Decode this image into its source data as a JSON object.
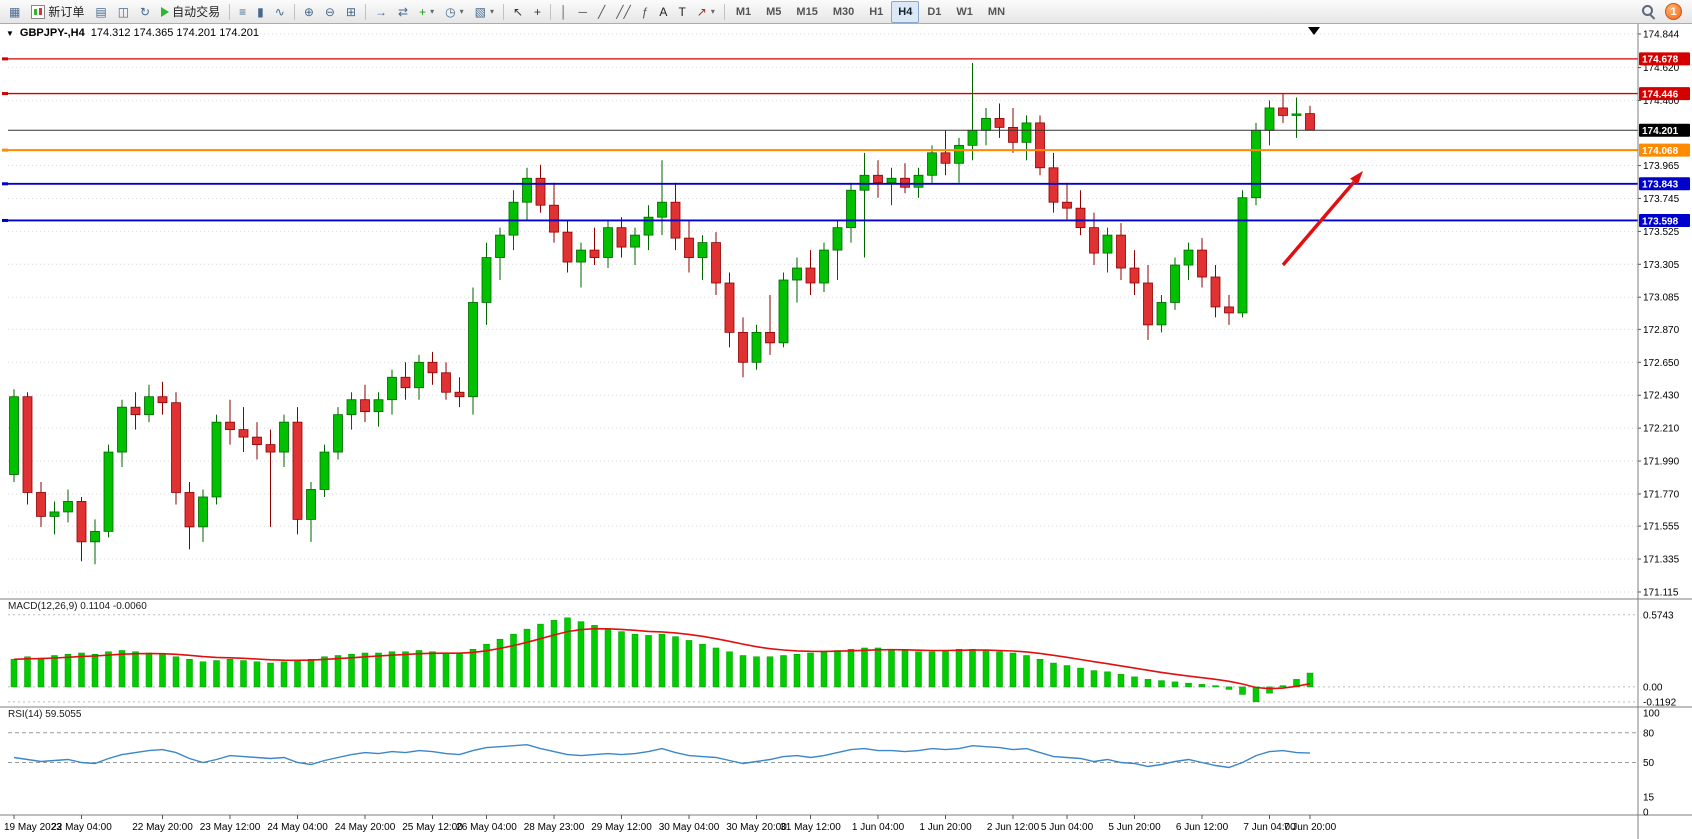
{
  "toolbar": {
    "buttons": [
      {
        "name": "new-chart-button",
        "glyph": "▦"
      },
      {
        "name": "new-order-button",
        "label": "新订单",
        "icon": "order-icon"
      },
      {
        "name": "chart-profiles-button",
        "glyph": "▤"
      },
      {
        "name": "market-watch-button",
        "glyph": "◫"
      },
      {
        "name": "refresh-button",
        "glyph": "↻"
      },
      {
        "name": "auto-trading-button",
        "label": "自动交易",
        "icon": "ea-icon"
      },
      {
        "sep": true
      },
      {
        "name": "bar-chart-button",
        "glyph": "≡"
      },
      {
        "name": "candlestick-chart-button",
        "glyph": "▮"
      },
      {
        "name": "line-chart-button",
        "glyph": "∿"
      },
      {
        "sep": true
      },
      {
        "name": "zoom-in-button",
        "glyph": "⊕"
      },
      {
        "name": "zoom-out-button",
        "glyph": "⊖"
      },
      {
        "name": "tile-windows-button",
        "glyph": "⊞"
      },
      {
        "sep": true
      },
      {
        "name": "auto-scroll-button",
        "glyph": "→"
      },
      {
        "name": "chart-shift-button",
        "glyph": "⇄"
      },
      {
        "name": "indicators-button",
        "glyph": "+",
        "color": "#1a9a1a",
        "caret": true
      },
      {
        "name": "periods-button",
        "glyph": "◷",
        "caret": true
      },
      {
        "name": "templates-button",
        "glyph": "▧",
        "caret": true
      },
      {
        "sep": true
      },
      {
        "name": "cursor-button",
        "glyph": "↖",
        "color": "#333333"
      },
      {
        "name": "crosshair-button",
        "glyph": "+",
        "color": "#333333"
      },
      {
        "sep": true
      },
      {
        "name": "vertical-line-button",
        "glyph": "│",
        "color": "#555555"
      },
      {
        "name": "horizontal-line-button",
        "glyph": "─",
        "color": "#555555"
      },
      {
        "name": "trendline-button",
        "glyph": "╱",
        "color": "#555555"
      },
      {
        "name": "equidistant-channel-button",
        "glyph": "╱╱",
        "color": "#555555"
      },
      {
        "name": "fibonacci-button",
        "glyph": "ƒ",
        "color": "#555555"
      },
      {
        "name": "text-button",
        "glyph": "A",
        "color": "#222222"
      },
      {
        "name": "text-label-button",
        "glyph": "T",
        "color": "#222222"
      },
      {
        "name": "arrows-button",
        "glyph": "↗",
        "color": "#a03030",
        "caret": true
      },
      {
        "sep": true
      }
    ],
    "timeframes": [
      "M1",
      "M5",
      "M15",
      "M30",
      "H1",
      "H4",
      "D1",
      "W1",
      "MN"
    ],
    "active_timeframe": "H4",
    "notification_count": "1"
  },
  "chart": {
    "title_symbol": "GBPJPY-,H4",
    "title_ohlc": "174.312 174.365 174.201 174.201",
    "current_price": "174.201",
    "current_price_color": "#000000",
    "price_axis": [
      "174.844",
      "174.620",
      "174.400",
      "173.965",
      "173.745",
      "173.525",
      "173.305",
      "173.085",
      "172.870",
      "172.650",
      "172.430",
      "172.210",
      "171.990",
      "171.770",
      "171.555",
      "171.335",
      "171.115"
    ],
    "levels": [
      {
        "value": "174.678",
        "color": "#d40000",
        "type": "resistance"
      },
      {
        "value": "174.446",
        "color": "#d40000",
        "type": "resistance"
      },
      {
        "value": "174.068",
        "color": "#ff8a00",
        "type": "pivot"
      },
      {
        "value": "173.843",
        "color": "#0000cc",
        "type": "support"
      },
      {
        "value": "173.598",
        "color": "#0000cc",
        "type": "support"
      }
    ],
    "annotation": {
      "type": "arrow-up-right",
      "color": "#e01010"
    }
  },
  "macd": {
    "label": "MACD(12,26,9) 0.1104 -0.0060",
    "scale": [
      "0.5743",
      "0.00",
      "-0.1192"
    ]
  },
  "rsi": {
    "label": "RSI(14) 59.5055",
    "scale": [
      [
        "100",
        100
      ],
      [
        "80",
        80
      ],
      [
        "50",
        50
      ],
      [
        "15",
        15
      ],
      [
        "0",
        0
      ]
    ],
    "dashed_levels": [
      80,
      50
    ]
  },
  "time_axis": {
    "ticks": [
      [
        "19 May 2023",
        0
      ],
      [
        "22 May 04:00",
        5
      ],
      [
        "22 May 20:00",
        11
      ],
      [
        "23 May 12:00",
        16
      ],
      [
        "24 May 04:00",
        21
      ],
      [
        "24 May 20:00",
        26
      ],
      [
        "25 May 12:00",
        31
      ],
      [
        "26 May 04:00",
        35
      ],
      [
        "28 May 23:00",
        40
      ],
      [
        "29 May 12:00",
        45
      ],
      [
        "30 May 04:00",
        50
      ],
      [
        "30 May 20:00",
        55
      ],
      [
        "31 May 12:00",
        59
      ],
      [
        "1 Jun 04:00",
        64
      ],
      [
        "1 Jun 20:00",
        69
      ],
      [
        "2 Jun 12:00",
        74
      ],
      [
        "5 Jun 04:00",
        78
      ],
      [
        "5 Jun 20:00",
        83
      ],
      [
        "6 Jun 12:00",
        88
      ],
      [
        "7 Jun 04:00",
        93
      ],
      [
        "7 Jun 20:00",
        96
      ]
    ]
  },
  "chart_data": {
    "type": "candlestick",
    "symbol": "GBPJPY",
    "period": "H4",
    "ylim": [
      171.068,
      174.911
    ],
    "up_color": "#00c000",
    "down_color": "#e03232",
    "candles": [
      [
        171.9,
        172.47,
        171.85,
        172.42
      ],
      [
        172.42,
        172.45,
        171.7,
        171.78
      ],
      [
        171.78,
        171.85,
        171.55,
        171.62
      ],
      [
        171.62,
        171.72,
        171.5,
        171.65
      ],
      [
        171.65,
        171.8,
        171.58,
        171.72
      ],
      [
        171.72,
        171.75,
        171.32,
        171.45
      ],
      [
        171.45,
        171.6,
        171.3,
        171.52
      ],
      [
        171.52,
        172.1,
        171.48,
        172.05
      ],
      [
        172.05,
        172.4,
        171.95,
        172.35
      ],
      [
        172.35,
        172.45,
        172.2,
        172.3
      ],
      [
        172.3,
        172.5,
        172.25,
        172.42
      ],
      [
        172.42,
        172.52,
        172.3,
        172.38
      ],
      [
        172.38,
        172.45,
        171.7,
        171.78
      ],
      [
        171.78,
        171.85,
        171.4,
        171.55
      ],
      [
        171.55,
        171.8,
        171.45,
        171.75
      ],
      [
        171.75,
        172.3,
        171.7,
        172.25
      ],
      [
        172.25,
        172.4,
        172.1,
        172.2
      ],
      [
        172.2,
        172.35,
        172.05,
        172.15
      ],
      [
        172.15,
        172.25,
        172.0,
        172.1
      ],
      [
        172.1,
        172.2,
        171.55,
        172.05
      ],
      [
        172.05,
        172.3,
        171.95,
        172.25
      ],
      [
        172.25,
        172.35,
        171.5,
        171.6
      ],
      [
        171.6,
        171.85,
        171.45,
        171.8
      ],
      [
        171.8,
        172.1,
        171.75,
        172.05
      ],
      [
        172.05,
        172.35,
        172.0,
        172.3
      ],
      [
        172.3,
        172.45,
        172.2,
        172.4
      ],
      [
        172.4,
        172.5,
        172.25,
        172.32
      ],
      [
        172.32,
        172.45,
        172.22,
        172.4
      ],
      [
        172.4,
        172.6,
        172.3,
        172.55
      ],
      [
        172.55,
        172.65,
        172.4,
        172.48
      ],
      [
        172.48,
        172.7,
        172.4,
        172.65
      ],
      [
        172.65,
        172.72,
        172.5,
        172.58
      ],
      [
        172.58,
        172.65,
        172.4,
        172.45
      ],
      [
        172.45,
        172.55,
        172.35,
        172.42
      ],
      [
        172.42,
        173.15,
        172.3,
        173.05
      ],
      [
        173.05,
        173.45,
        172.9,
        173.35
      ],
      [
        173.35,
        173.55,
        173.2,
        173.5
      ],
      [
        173.5,
        173.8,
        173.4,
        173.72
      ],
      [
        173.72,
        173.95,
        173.6,
        173.88
      ],
      [
        173.88,
        173.97,
        173.65,
        173.7
      ],
      [
        173.7,
        173.85,
        173.45,
        173.52
      ],
      [
        173.52,
        173.6,
        173.25,
        173.32
      ],
      [
        173.32,
        173.45,
        173.15,
        173.4
      ],
      [
        173.4,
        173.55,
        173.3,
        173.35
      ],
      [
        173.35,
        173.6,
        173.28,
        173.55
      ],
      [
        173.55,
        173.62,
        173.35,
        173.42
      ],
      [
        173.42,
        173.55,
        173.3,
        173.5
      ],
      [
        173.5,
        173.7,
        173.4,
        173.62
      ],
      [
        173.62,
        174.0,
        173.5,
        173.72
      ],
      [
        173.72,
        173.85,
        173.4,
        173.48
      ],
      [
        173.48,
        173.6,
        173.25,
        173.35
      ],
      [
        173.35,
        173.5,
        173.2,
        173.45
      ],
      [
        173.45,
        173.52,
        173.1,
        173.18
      ],
      [
        173.18,
        173.25,
        172.75,
        172.85
      ],
      [
        172.85,
        172.95,
        172.55,
        172.65
      ],
      [
        172.65,
        172.9,
        172.6,
        172.85
      ],
      [
        172.85,
        173.1,
        172.7,
        172.78
      ],
      [
        172.78,
        173.25,
        172.75,
        173.2
      ],
      [
        173.2,
        173.35,
        173.05,
        173.28
      ],
      [
        173.28,
        173.4,
        173.1,
        173.18
      ],
      [
        173.18,
        173.45,
        173.12,
        173.4
      ],
      [
        173.4,
        173.6,
        173.2,
        173.55
      ],
      [
        173.55,
        173.85,
        173.45,
        173.8
      ],
      [
        173.8,
        174.05,
        173.35,
        173.9
      ],
      [
        173.9,
        174.0,
        173.75,
        173.85
      ],
      [
        173.85,
        173.95,
        173.7,
        173.88
      ],
      [
        173.88,
        173.98,
        173.78,
        173.82
      ],
      [
        173.82,
        173.95,
        173.75,
        173.9
      ],
      [
        173.9,
        174.1,
        173.85,
        174.05
      ],
      [
        174.05,
        174.2,
        173.9,
        173.98
      ],
      [
        173.98,
        174.15,
        173.85,
        174.1
      ],
      [
        174.1,
        174.65,
        174.0,
        174.2
      ],
      [
        174.2,
        174.35,
        174.1,
        174.28
      ],
      [
        174.28,
        174.38,
        174.15,
        174.22
      ],
      [
        174.22,
        174.35,
        174.05,
        174.12
      ],
      [
        174.12,
        174.3,
        174.0,
        174.25
      ],
      [
        174.25,
        174.3,
        173.9,
        173.95
      ],
      [
        173.95,
        174.05,
        173.65,
        173.72
      ],
      [
        173.72,
        173.85,
        173.6,
        173.68
      ],
      [
        173.68,
        173.8,
        173.5,
        173.55
      ],
      [
        173.55,
        173.65,
        173.3,
        173.38
      ],
      [
        173.38,
        173.55,
        173.25,
        173.5
      ],
      [
        173.5,
        173.58,
        173.2,
        173.28
      ],
      [
        173.28,
        173.4,
        173.1,
        173.18
      ],
      [
        173.18,
        173.3,
        172.8,
        172.9
      ],
      [
        172.9,
        173.1,
        172.85,
        173.05
      ],
      [
        173.05,
        173.35,
        173.0,
        173.3
      ],
      [
        173.3,
        173.45,
        173.2,
        173.4
      ],
      [
        173.4,
        173.48,
        173.15,
        173.22
      ],
      [
        173.22,
        173.3,
        172.95,
        173.02
      ],
      [
        173.02,
        173.1,
        172.9,
        172.98
      ],
      [
        172.98,
        173.8,
        172.95,
        173.75
      ],
      [
        173.75,
        174.25,
        173.7,
        174.2
      ],
      [
        174.2,
        174.4,
        174.1,
        174.35
      ],
      [
        174.35,
        174.45,
        174.25,
        174.3
      ],
      [
        174.3,
        174.42,
        174.15,
        174.31
      ],
      [
        174.312,
        174.365,
        174.201,
        174.201
      ]
    ],
    "macd": {
      "ylim": [
        -0.16,
        0.7
      ],
      "histogram": [
        0.22,
        0.24,
        0.23,
        0.25,
        0.26,
        0.27,
        0.26,
        0.28,
        0.29,
        0.28,
        0.27,
        0.26,
        0.24,
        0.22,
        0.2,
        0.21,
        0.22,
        0.21,
        0.2,
        0.19,
        0.2,
        0.21,
        0.22,
        0.24,
        0.25,
        0.26,
        0.27,
        0.27,
        0.28,
        0.28,
        0.29,
        0.28,
        0.27,
        0.27,
        0.3,
        0.34,
        0.38,
        0.42,
        0.46,
        0.5,
        0.53,
        0.55,
        0.52,
        0.49,
        0.46,
        0.44,
        0.42,
        0.41,
        0.42,
        0.4,
        0.37,
        0.34,
        0.31,
        0.28,
        0.25,
        0.24,
        0.24,
        0.25,
        0.26,
        0.27,
        0.28,
        0.29,
        0.3,
        0.31,
        0.31,
        0.3,
        0.29,
        0.28,
        0.28,
        0.29,
        0.3,
        0.3,
        0.29,
        0.28,
        0.27,
        0.25,
        0.22,
        0.19,
        0.17,
        0.15,
        0.13,
        0.12,
        0.1,
        0.08,
        0.06,
        0.05,
        0.04,
        0.03,
        0.02,
        0.01,
        -0.02,
        -0.06,
        -0.119,
        -0.05,
        0.01,
        0.06,
        0.1104
      ]
    },
    "rsi": {
      "ylim": [
        0,
        100
      ],
      "values": [
        55,
        53,
        51,
        52,
        53,
        50,
        49,
        54,
        58,
        60,
        62,
        63,
        60,
        54,
        50,
        53,
        57,
        56,
        55,
        54,
        55,
        50,
        48,
        52,
        55,
        58,
        60,
        59,
        61,
        60,
        62,
        61,
        59,
        58,
        62,
        65,
        66,
        67,
        68,
        64,
        61,
        58,
        57,
        58,
        59,
        58,
        59,
        61,
        64,
        60,
        57,
        56,
        55,
        52,
        49,
        51,
        53,
        56,
        57,
        55,
        57,
        60,
        63,
        64,
        62,
        62,
        61,
        62,
        64,
        63,
        64,
        67,
        66,
        65,
        63,
        64,
        60,
        56,
        55,
        54,
        51,
        53,
        50,
        49,
        46,
        48,
        51,
        53,
        50,
        47,
        45,
        50,
        57,
        61,
        62,
        60,
        59.5
      ]
    }
  }
}
